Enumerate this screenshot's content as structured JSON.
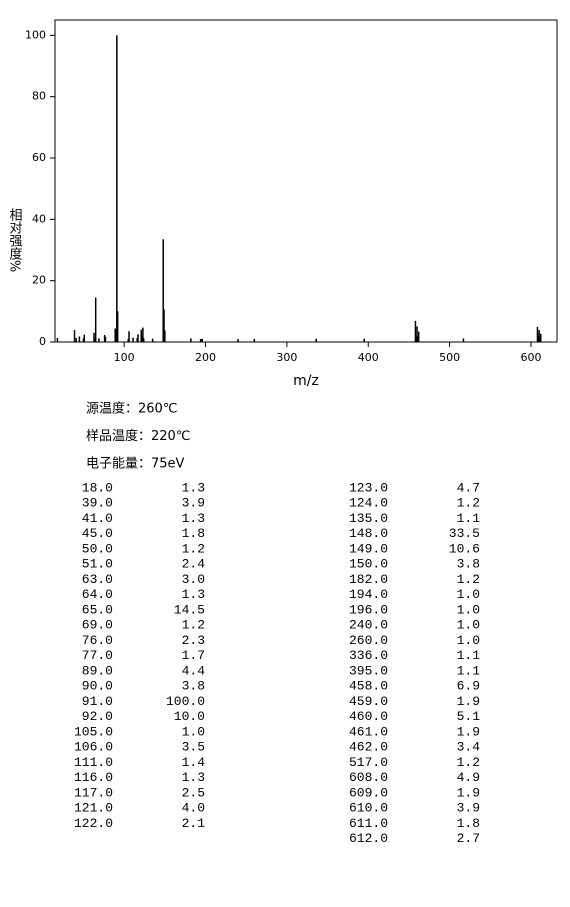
{
  "chart_data": {
    "type": "bar",
    "x_label": "m/z",
    "y_label": "相对强度%",
    "xlim": [
      15,
      632
    ],
    "xticks": [
      100,
      200,
      300,
      400,
      500,
      600
    ],
    "ylim": [
      0,
      105
    ],
    "yticks": [
      0,
      20,
      40,
      60,
      80,
      100
    ],
    "color": "#000000",
    "x": [
      18,
      39,
      41,
      45,
      50,
      51,
      63,
      64,
      65,
      69,
      76,
      77,
      89,
      90,
      91,
      92,
      105,
      106,
      111,
      116,
      117,
      121,
      122,
      123,
      124,
      135,
      148,
      149,
      150,
      182,
      194,
      196,
      240,
      260,
      336,
      395,
      458,
      459,
      460,
      461,
      462,
      517,
      608,
      609,
      610,
      611,
      612
    ],
    "x_labels": [
      "18.0",
      "39.0",
      "41.0",
      "45.0",
      "50.0",
      "51.0",
      "63.0",
      "64.0",
      "65.0",
      "69.0",
      "76.0",
      "77.0",
      "89.0",
      "90.0",
      "91.0",
      "92.0",
      "105.0",
      "106.0",
      "111.0",
      "116.0",
      "117.0",
      "121.0",
      "122.0",
      "123.0",
      "124.0",
      "135.0",
      "148.0",
      "149.0",
      "150.0",
      "182.0",
      "194.0",
      "196.0",
      "240.0",
      "260.0",
      "336.0",
      "395.0",
      "458.0",
      "459.0",
      "460.0",
      "461.0",
      "462.0",
      "517.0",
      "608.0",
      "609.0",
      "610.0",
      "611.0",
      "612.0"
    ],
    "values": [
      1.3,
      3.9,
      1.3,
      1.8,
      1.2,
      2.4,
      3.0,
      1.3,
      14.5,
      1.2,
      2.3,
      1.7,
      4.4,
      3.8,
      100.0,
      10.0,
      1.0,
      3.5,
      1.4,
      1.3,
      2.5,
      4.0,
      2.1,
      4.7,
      1.2,
      1.1,
      33.5,
      10.6,
      3.8,
      1.2,
      1.0,
      1.0,
      1.0,
      1.0,
      1.1,
      1.1,
      6.9,
      1.9,
      5.1,
      1.9,
      3.4,
      1.2,
      4.9,
      1.9,
      3.9,
      1.8,
      2.7
    ],
    "value_labels": [
      "1.3",
      "3.9",
      "1.3",
      "1.8",
      "1.2",
      "2.4",
      "3.0",
      "1.3",
      "14.5",
      "1.2",
      "2.3",
      "1.7",
      "4.4",
      "3.8",
      "100.0",
      "10.0",
      "1.0",
      "3.5",
      "1.4",
      "1.3",
      "2.5",
      "4.0",
      "2.1",
      "4.7",
      "1.2",
      "1.1",
      "33.5",
      "10.6",
      "3.8",
      "1.2",
      "1.0",
      "1.0",
      "1.0",
      "1.0",
      "1.1",
      "1.1",
      "6.9",
      "1.9",
      "5.1",
      "1.9",
      "3.4",
      "1.2",
      "4.9",
      "1.9",
      "3.9",
      "1.8",
      "2.7"
    ]
  },
  "conditions": [
    "源温度：260℃",
    "样品温度：220℃",
    "电子能量：75eV"
  ]
}
